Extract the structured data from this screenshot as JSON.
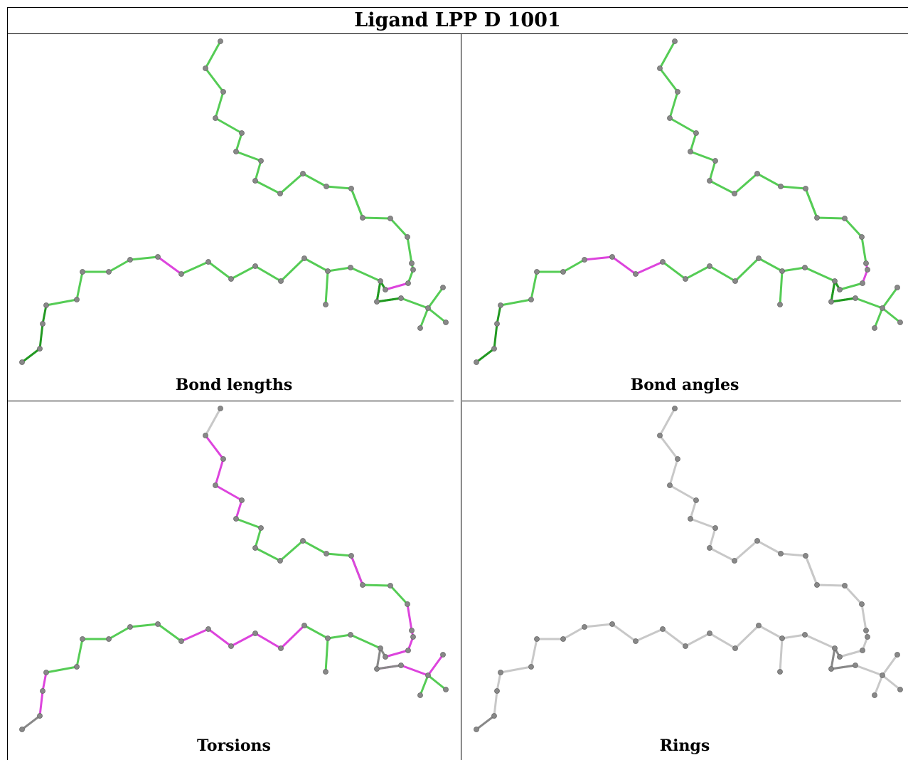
{
  "title": "Ligand LPP D 1001",
  "panels": [
    {
      "id": "bond-lengths",
      "caption": "Bond lengths"
    },
    {
      "id": "bond-angles",
      "caption": "Bond angles"
    },
    {
      "id": "torsions",
      "caption": "Torsions"
    },
    {
      "id": "rings",
      "caption": "Rings"
    }
  ],
  "colors": {
    "green": "#55cc55",
    "dark_green": "#229922",
    "magenta": "#dd44dd",
    "grey": "#c8c8c8",
    "dark_grey": "#888888",
    "atom": "#888888"
  },
  "bond_colors": {
    "bond-lengths": [
      "green",
      "green",
      "green",
      "green",
      "green",
      "green",
      "green",
      "green",
      "green",
      "green",
      "green",
      "green",
      "green",
      "green",
      "green",
      "green",
      "green",
      "magenta",
      "green",
      "green",
      "green",
      "green",
      "green",
      "green",
      "green",
      "green",
      "green",
      "green",
      "green",
      "green",
      "green",
      "green",
      "green",
      "green",
      "magenta",
      "green",
      "green",
      "green",
      "green",
      "green",
      "dark_green",
      "dark_green",
      "dark_green",
      "dark_green",
      "dark_green",
      "dark_green",
      "green"
    ],
    "bond-angles": [
      "green",
      "green",
      "green",
      "green",
      "green",
      "green",
      "green",
      "green",
      "green",
      "green",
      "green",
      "green",
      "green",
      "green",
      "green",
      "magenta",
      "magenta",
      "green",
      "green",
      "green",
      "green",
      "green",
      "green",
      "green",
      "green",
      "green",
      "green",
      "green",
      "green",
      "green",
      "green",
      "green",
      "green",
      "magenta",
      "magenta",
      "magenta",
      "green",
      "green",
      "green",
      "green",
      "dark_green",
      "dark_green",
      "dark_green",
      "dark_green",
      "dark_green",
      "dark_green",
      "green"
    ],
    "torsions": [
      "grey",
      "magenta",
      "magenta",
      "magenta",
      "magenta",
      "green",
      "green",
      "green",
      "green",
      "green",
      "green",
      "green",
      "green",
      "green",
      "magenta",
      "magenta",
      "magenta",
      "magenta",
      "green",
      "grey",
      "magenta",
      "magenta",
      "magenta",
      "green",
      "green",
      "green",
      "green",
      "green",
      "green",
      "magenta",
      "magenta",
      "magenta",
      "magenta",
      "magenta",
      "green",
      "green",
      "green",
      "green",
      "green",
      "green",
      "magenta",
      "magenta",
      "dark_grey",
      "dark_grey",
      "dark_grey",
      "dark_grey",
      "magenta"
    ],
    "rings": [
      "grey",
      "grey",
      "grey",
      "grey",
      "grey",
      "grey",
      "grey",
      "grey",
      "grey",
      "grey",
      "grey",
      "grey",
      "grey",
      "grey",
      "grey",
      "grey",
      "grey",
      "grey",
      "grey",
      "grey",
      "grey",
      "grey",
      "grey",
      "grey",
      "grey",
      "grey",
      "grey",
      "grey",
      "grey",
      "grey",
      "grey",
      "grey",
      "grey",
      "grey",
      "grey",
      "grey",
      "grey",
      "grey",
      "grey",
      "grey",
      "grey",
      "grey",
      "dark_grey",
      "dark_grey",
      "dark_grey",
      "dark_grey",
      "grey"
    ]
  }
}
